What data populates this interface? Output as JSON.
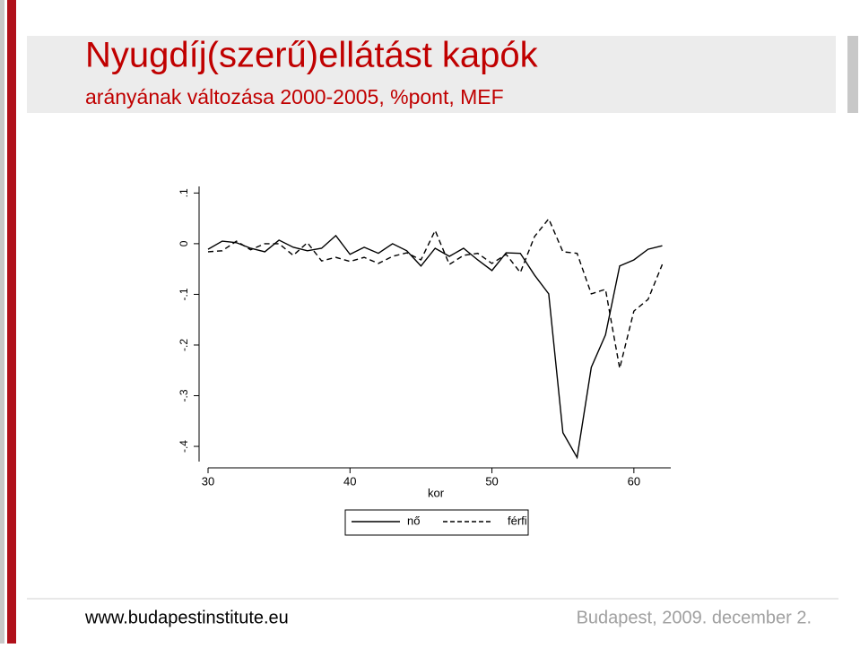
{
  "chart_data": {
    "type": "line",
    "title": "Nyugdíj(szerű)ellátást kapók",
    "subtitle": "arányának változása 2000-2005, %pont, MEF",
    "x_label": "kor",
    "x": [
      30,
      31,
      32,
      33,
      34,
      35,
      36,
      37,
      38,
      39,
      40,
      41,
      42,
      43,
      44,
      45,
      46,
      47,
      48,
      49,
      50,
      51,
      52,
      53,
      54,
      55,
      56,
      57,
      58,
      59,
      60,
      61,
      62
    ],
    "series": [
      {
        "name": "nő",
        "color": "#000000",
        "dash": false,
        "values": [
          -0.011,
          0.005,
          0.002,
          -0.009,
          -0.016,
          0.007,
          -0.007,
          -0.014,
          -0.009,
          0.016,
          -0.021,
          -0.007,
          -0.019,
          0,
          -0.014,
          -0.044,
          -0.009,
          -0.025,
          -0.009,
          -0.032,
          -0.053,
          -0.018,
          -0.019,
          -0.062,
          -0.099,
          -0.373,
          -0.422,
          -0.244,
          -0.18,
          -0.044,
          -0.032,
          -0.011,
          -0.004
        ]
      },
      {
        "name": "férfi",
        "color": "#000000",
        "dash": true,
        "values": [
          -0.016,
          -0.014,
          0.005,
          -0.012,
          0,
          0,
          -0.023,
          0.002,
          -0.034,
          -0.027,
          -0.035,
          -0.027,
          -0.039,
          -0.025,
          -0.018,
          -0.032,
          0.026,
          -0.041,
          -0.023,
          -0.019,
          -0.039,
          -0.021,
          -0.057,
          0.014,
          0.049,
          -0.016,
          -0.019,
          -0.099,
          -0.09,
          -0.246,
          -0.133,
          -0.11,
          -0.041
        ]
      }
    ],
    "xlim": [
      30,
      62.6
    ],
    "xticks": [
      30,
      40,
      50,
      60
    ],
    "ylim": [
      -0.43,
      0.113
    ],
    "yticks": [
      {
        "value": -0.4,
        "label": "-.4"
      },
      {
        "value": -0.3,
        "label": "-.3"
      },
      {
        "value": -0.2,
        "label": "-.2"
      },
      {
        "value": -0.1,
        "label": "-.1"
      },
      0,
      {
        "value": 0.1,
        "label": ".1"
      }
    ],
    "grid": false,
    "legend": "bottom"
  },
  "footer": {
    "url": "www.budapestinstitute.eu",
    "date": "Budapest, 2009. december 2."
  }
}
